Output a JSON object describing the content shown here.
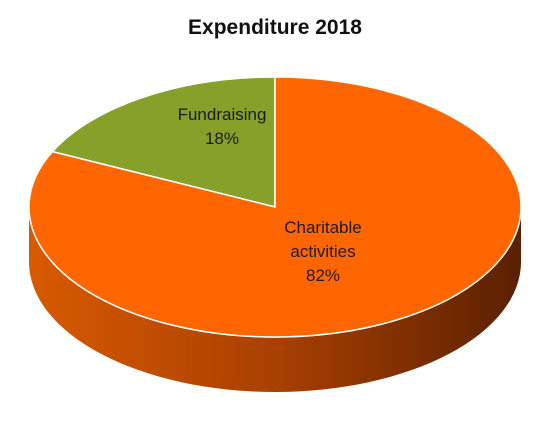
{
  "chart_data": {
    "type": "pie",
    "title": "Expenditure 2018",
    "slices": [
      {
        "label": "Fundraising",
        "value": 18,
        "value_label": "18%",
        "color": "#86A02A",
        "side_color": "#5F7420"
      },
      {
        "label": "Charitable\nactivities",
        "value": 82,
        "value_label": "82%",
        "color": "#FF6600",
        "side_color": "#C85000"
      }
    ],
    "legend": "none",
    "style": "3d"
  }
}
